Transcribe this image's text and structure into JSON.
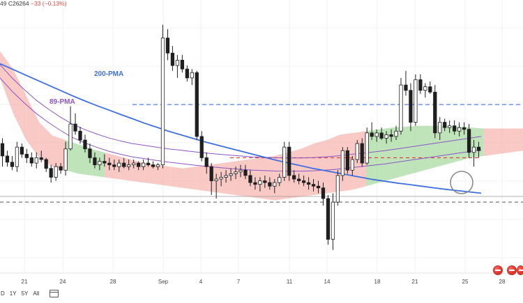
{
  "ohlc_readout": {
    "prefix": "49",
    "close": "C26264",
    "change": "−33 (−0.13%)"
  },
  "colors": {
    "bull": "#1f1f1f",
    "bear": "#1f1f1f",
    "pma200": "#3e6fe0",
    "pma89": "#8b55c7",
    "cloud_bear": "#f6b7b2",
    "cloud_bull": "#a9dba2",
    "level_blue": "#3e6fe0",
    "level_red": "#e0453f",
    "level_gray": "#555555"
  },
  "range_buttons": [
    "D",
    "1Y",
    "5Y",
    "All"
  ],
  "chart_data": {
    "type": "candlestick",
    "x_ticks": [
      "21",
      "24",
      "28",
      "Sep",
      "4",
      "7",
      "11",
      "14",
      "18",
      "21",
      "25",
      "28"
    ],
    "candles": [
      [
        26860,
        26920,
        26600,
        26720
      ],
      [
        26720,
        26780,
        26600,
        26650
      ],
      [
        26650,
        26720,
        26560,
        26600
      ],
      [
        26600,
        26880,
        26540,
        26820
      ],
      [
        26820,
        26860,
        26700,
        26740
      ],
      [
        26740,
        26800,
        26640,
        26700
      ],
      [
        26700,
        26760,
        26600,
        26640
      ],
      [
        26640,
        26760,
        26580,
        26700
      ],
      [
        26700,
        26780,
        26650,
        26680
      ],
      [
        26680,
        26700,
        26540,
        26580
      ],
      [
        26580,
        26620,
        26420,
        26480
      ],
      [
        26480,
        26640,
        26440,
        26600
      ],
      [
        26600,
        26640,
        26520,
        26560
      ],
      [
        26560,
        26880,
        26500,
        26800
      ],
      [
        26800,
        27280,
        26780,
        27080
      ],
      [
        27080,
        27200,
        26960,
        27000
      ],
      [
        27000,
        27050,
        26860,
        26900
      ],
      [
        26900,
        26960,
        26760,
        26800
      ],
      [
        26800,
        26860,
        26640,
        26700
      ],
      [
        26700,
        26760,
        26580,
        26620
      ],
      [
        26620,
        26700,
        26560,
        26660
      ],
      [
        26660,
        26740,
        26600,
        26640
      ],
      [
        26640,
        26700,
        26560,
        26620
      ],
      [
        26620,
        26680,
        26560,
        26600
      ],
      [
        26600,
        26680,
        26540,
        26640
      ],
      [
        26640,
        26700,
        26580,
        26600
      ],
      [
        26600,
        26680,
        26560,
        26620
      ],
      [
        26620,
        26680,
        26580,
        26640
      ],
      [
        26640,
        26660,
        26560,
        26600
      ],
      [
        26600,
        26680,
        26560,
        26640
      ],
      [
        26640,
        26700,
        26600,
        26620
      ],
      [
        26620,
        26660,
        26580,
        26600
      ],
      [
        26600,
        26640,
        26560,
        26620
      ],
      [
        26620,
        28200,
        26580,
        28050
      ],
      [
        28050,
        28150,
        27800,
        27880
      ],
      [
        27880,
        27960,
        27680,
        27740
      ],
      [
        27740,
        27860,
        27600,
        27800
      ],
      [
        27800,
        27860,
        27660,
        27700
      ],
      [
        27700,
        27740,
        27560,
        27600
      ],
      [
        27600,
        27700,
        27520,
        27660
      ],
      [
        27660,
        27680,
        26900,
        26940
      ],
      [
        26940,
        27000,
        26660,
        26700
      ],
      [
        26700,
        26760,
        26520,
        26600
      ],
      [
        26600,
        26640,
        26280,
        26440
      ],
      [
        26440,
        26520,
        26240,
        26460
      ],
      [
        26460,
        26540,
        26380,
        26480
      ],
      [
        26480,
        26560,
        26420,
        26500
      ],
      [
        26500,
        26580,
        26440,
        26520
      ],
      [
        26520,
        26600,
        26460,
        26540
      ],
      [
        26540,
        26620,
        26480,
        26560
      ],
      [
        26560,
        26620,
        26460,
        26500
      ],
      [
        26500,
        26560,
        26380,
        26420
      ],
      [
        26420,
        26480,
        26340,
        26400
      ],
      [
        26400,
        26480,
        26320,
        26440
      ],
      [
        26440,
        26500,
        26360,
        26420
      ],
      [
        26420,
        26480,
        26340,
        26380
      ],
      [
        26380,
        26460,
        26300,
        26420
      ],
      [
        26420,
        26520,
        26380,
        26480
      ],
      [
        26480,
        26880,
        26440,
        26820
      ],
      [
        26820,
        26880,
        26440,
        26500
      ],
      [
        26500,
        26560,
        26420,
        26460
      ],
      [
        26460,
        26520,
        26400,
        26440
      ],
      [
        26440,
        26500,
        26380,
        26420
      ],
      [
        26420,
        26480,
        26340,
        26400
      ],
      [
        26400,
        26460,
        26320,
        26380
      ],
      [
        26380,
        26440,
        26300,
        26360
      ],
      [
        26360,
        26420,
        26160,
        26240
      ],
      [
        26240,
        26280,
        25720,
        25780
      ],
      [
        25780,
        26300,
        25660,
        26200
      ],
      [
        26200,
        26560,
        26160,
        26500
      ],
      [
        26500,
        26820,
        26440,
        26780
      ],
      [
        26780,
        26820,
        26520,
        26560
      ],
      [
        26560,
        26720,
        26500,
        26680
      ],
      [
        26680,
        26900,
        26640,
        26860
      ],
      [
        26860,
        26920,
        26600,
        26640
      ],
      [
        26640,
        27040,
        26620,
        26980
      ],
      [
        26980,
        27100,
        26900,
        26940
      ],
      [
        26940,
        27020,
        26880,
        26980
      ],
      [
        26980,
        27040,
        26900,
        26920
      ],
      [
        26920,
        27000,
        26860,
        26960
      ],
      [
        26960,
        27020,
        26880,
        26940
      ],
      [
        26940,
        27060,
        26900,
        27000
      ],
      [
        27000,
        27600,
        26960,
        27520
      ],
      [
        27520,
        27680,
        27400,
        27460
      ],
      [
        27460,
        27540,
        27000,
        27100
      ],
      [
        27100,
        27640,
        27060,
        27580
      ],
      [
        27580,
        27640,
        27420,
        27460
      ],
      [
        27460,
        27540,
        27380,
        27500
      ],
      [
        27500,
        27560,
        27420,
        27440
      ],
      [
        27440,
        27520,
        26920,
        26980
      ],
      [
        26980,
        27160,
        26900,
        27100
      ],
      [
        27100,
        27140,
        27000,
        27040
      ],
      [
        27040,
        27120,
        26980,
        27060
      ],
      [
        27060,
        27120,
        26960,
        27000
      ],
      [
        27000,
        27100,
        26940,
        27040
      ],
      [
        27040,
        27100,
        26960,
        27020
      ],
      [
        27020,
        27080,
        26700,
        26760
      ],
      [
        26760,
        26900,
        26600,
        26820
      ],
      [
        26820,
        26880,
        26700,
        26780
      ]
    ],
    "pma200": [
      27760,
      27700,
      27640,
      27580,
      27520,
      27460,
      27400,
      27344,
      27290,
      27240,
      27190,
      27140,
      27090,
      27045,
      27000,
      26960,
      26920,
      26880,
      26845,
      26810,
      26775,
      26740,
      26705,
      26670,
      26640,
      26610,
      26580,
      26555,
      26530,
      26505,
      26480,
      26455,
      26435,
      26415,
      26398,
      26380,
      26362,
      26345,
      26330,
      26315,
      26300
    ],
    "pma89": [
      27600,
      27450,
      27320,
      27200,
      27100,
      27010,
      26930,
      26870,
      26820,
      26775,
      26740,
      26710,
      26690,
      26670,
      26650,
      26635,
      26620,
      26605,
      26592,
      26580,
      26570,
      26560,
      26555,
      26550,
      26548,
      26548,
      26552,
      26560,
      26570,
      26585,
      26600,
      26615,
      26630,
      26650,
      26670,
      26690,
      26710,
      26730,
      26750,
      26770,
      26790
    ],
    "cloud_upper": [
      27900,
      27700,
      27400,
      27100,
      26950,
      26900,
      26850,
      26800,
      26760,
      26720,
      26680,
      26640,
      26620,
      26600,
      26580,
      26600,
      26620,
      26640,
      26660,
      26680,
      26700,
      26720,
      26760,
      26800,
      26860,
      26900,
      26960,
      26980,
      27000,
      27020,
      27040,
      27050,
      27060,
      27060,
      27060,
      27050,
      27040,
      27030,
      27030,
      27030,
      27030
    ],
    "cloud_lower": [
      27600,
      27200,
      26900,
      26700,
      26600,
      26560,
      26520,
      26500,
      26480,
      26460,
      26440,
      26420,
      26400,
      26380,
      26360,
      26340,
      26320,
      26300,
      26280,
      26260,
      26240,
      26220,
      26240,
      26260,
      26280,
      26300,
      26320,
      26340,
      26380,
      26420,
      26460,
      26500,
      26540,
      26580,
      26620,
      26660,
      26700,
      26720,
      26740,
      26760,
      26780
    ],
    "levels": {
      "upper": 27300,
      "mid": 26700,
      "support": 26200
    },
    "last_price": 26264,
    "y_range": [
      25400,
      28400
    ],
    "annotations": [
      {
        "text": "200-PMA",
        "value_series": "pma200"
      },
      {
        "text": "89-PMA",
        "value_series": "pma89"
      }
    ]
  }
}
